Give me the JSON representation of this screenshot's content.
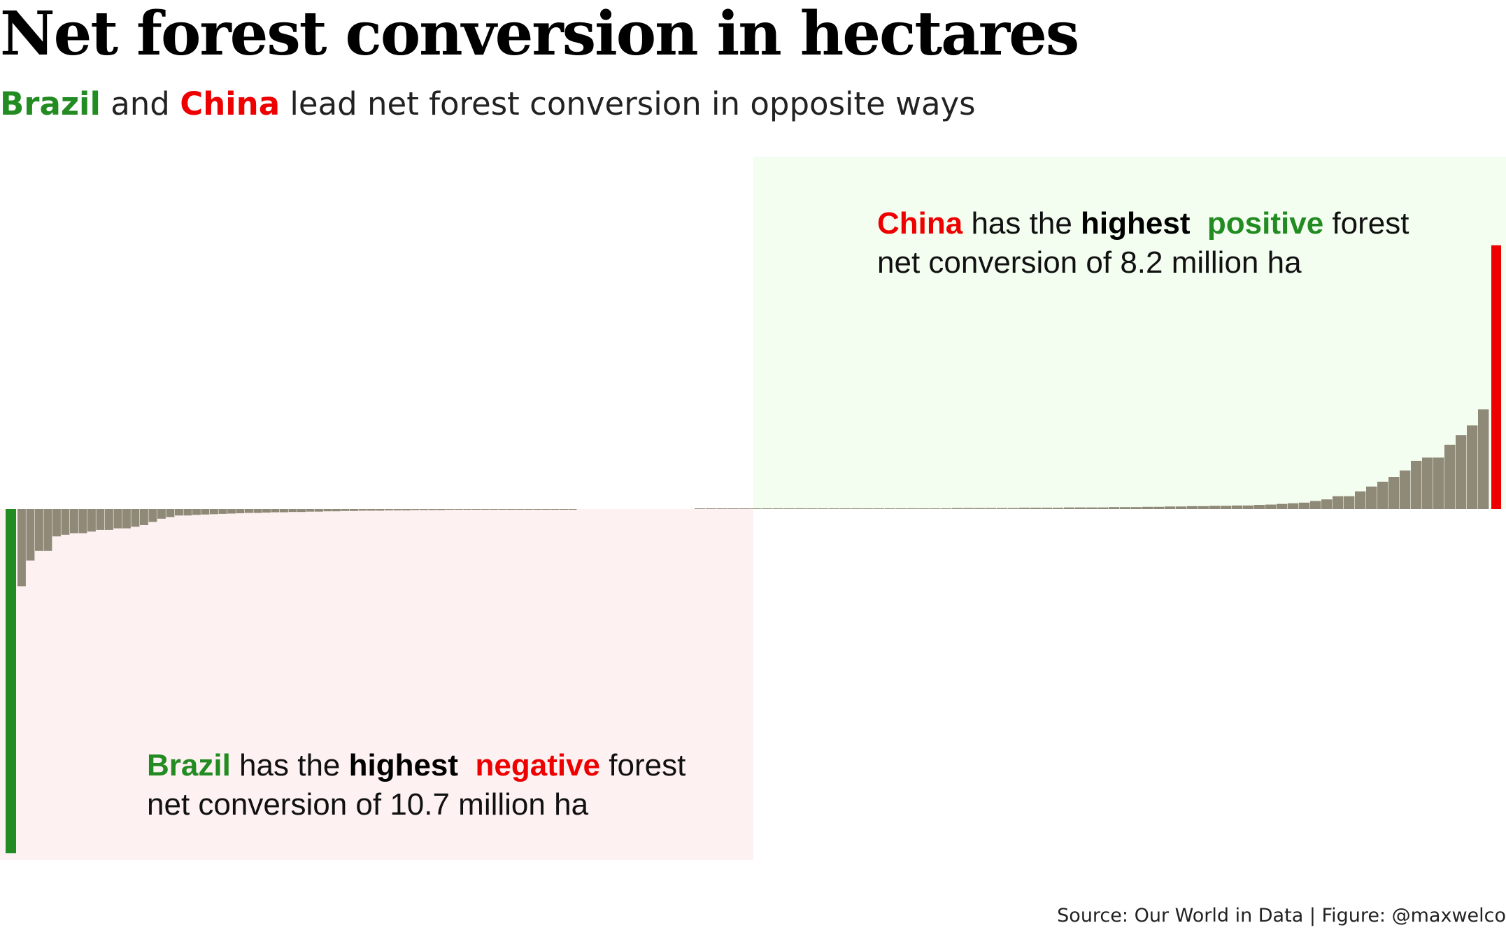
{
  "header": {
    "title": "Net forest conversion in hectares",
    "subtitle": {
      "brazil": "Brazil",
      "and": " and ",
      "china": "China",
      "rest": " lead net forest conversion in opposite ways"
    }
  },
  "annotations": {
    "china": {
      "country": "China",
      "has_the": " has the ",
      "highest": "highest",
      "sentiment": "positive",
      "forest": " forest",
      "line2": "net conversion of 8.2 million ha"
    },
    "brazil": {
      "country": "Brazil",
      "has_the": " has the ",
      "highest": "highest",
      "sentiment": "negative",
      "forest": " forest",
      "line2": "net conversion of 10.7 million ha"
    }
  },
  "caption": "Source: Our World in Data | Figure: @maxwelco",
  "colors": {
    "brazil": "#228b22",
    "china": "#ee0000",
    "bars": "#8f8977",
    "positive_panel": "#f3fdf0",
    "negative_panel": "#fdf1f1"
  },
  "chart_data": {
    "type": "bar",
    "ylabel": "",
    "xlabel": "",
    "units": "million hectares",
    "ylim": [
      -11.0,
      11.0
    ],
    "highlighted": [
      {
        "name": "Brazil",
        "value": -10.7
      },
      {
        "name": "China",
        "value": 8.2
      }
    ],
    "negative_values": [
      -10.7,
      -2.4,
      -1.6,
      -1.3,
      -1.3,
      -0.85,
      -0.8,
      -0.75,
      -0.75,
      -0.7,
      -0.65,
      -0.65,
      -0.6,
      -0.6,
      -0.55,
      -0.5,
      -0.4,
      -0.3,
      -0.25,
      -0.2,
      -0.2,
      -0.18,
      -0.17,
      -0.16,
      -0.15,
      -0.14,
      -0.13,
      -0.12,
      -0.12,
      -0.11,
      -0.1,
      -0.1,
      -0.09,
      -0.09,
      -0.08,
      -0.08,
      -0.07,
      -0.07,
      -0.06,
      -0.06,
      -0.05,
      -0.05,
      -0.05,
      -0.04,
      -0.04,
      -0.04,
      -0.03,
      -0.03,
      -0.03,
      -0.03,
      -0.02,
      -0.02,
      -0.02,
      -0.02,
      -0.02,
      -0.01,
      -0.01,
      -0.01,
      -0.01,
      -0.01,
      -0.01,
      -0.01,
      -0.005,
      -0.005,
      -0.005
    ],
    "positive_values": [
      0.005,
      0.005,
      0.005,
      0.005,
      0.01,
      0.01,
      0.01,
      0.01,
      0.01,
      0.01,
      0.01,
      0.01,
      0.01,
      0.02,
      0.02,
      0.02,
      0.02,
      0.02,
      0.02,
      0.02,
      0.02,
      0.02,
      0.02,
      0.03,
      0.03,
      0.03,
      0.03,
      0.03,
      0.03,
      0.04,
      0.04,
      0.04,
      0.04,
      0.05,
      0.05,
      0.05,
      0.05,
      0.06,
      0.06,
      0.06,
      0.07,
      0.07,
      0.08,
      0.08,
      0.09,
      0.09,
      0.1,
      0.1,
      0.11,
      0.11,
      0.13,
      0.14,
      0.16,
      0.18,
      0.2,
      0.25,
      0.3,
      0.4,
      0.4,
      0.55,
      0.7,
      0.85,
      1.0,
      1.2,
      1.5,
      1.6,
      1.6,
      2.0,
      2.3,
      2.6,
      3.1,
      8.2
    ]
  }
}
